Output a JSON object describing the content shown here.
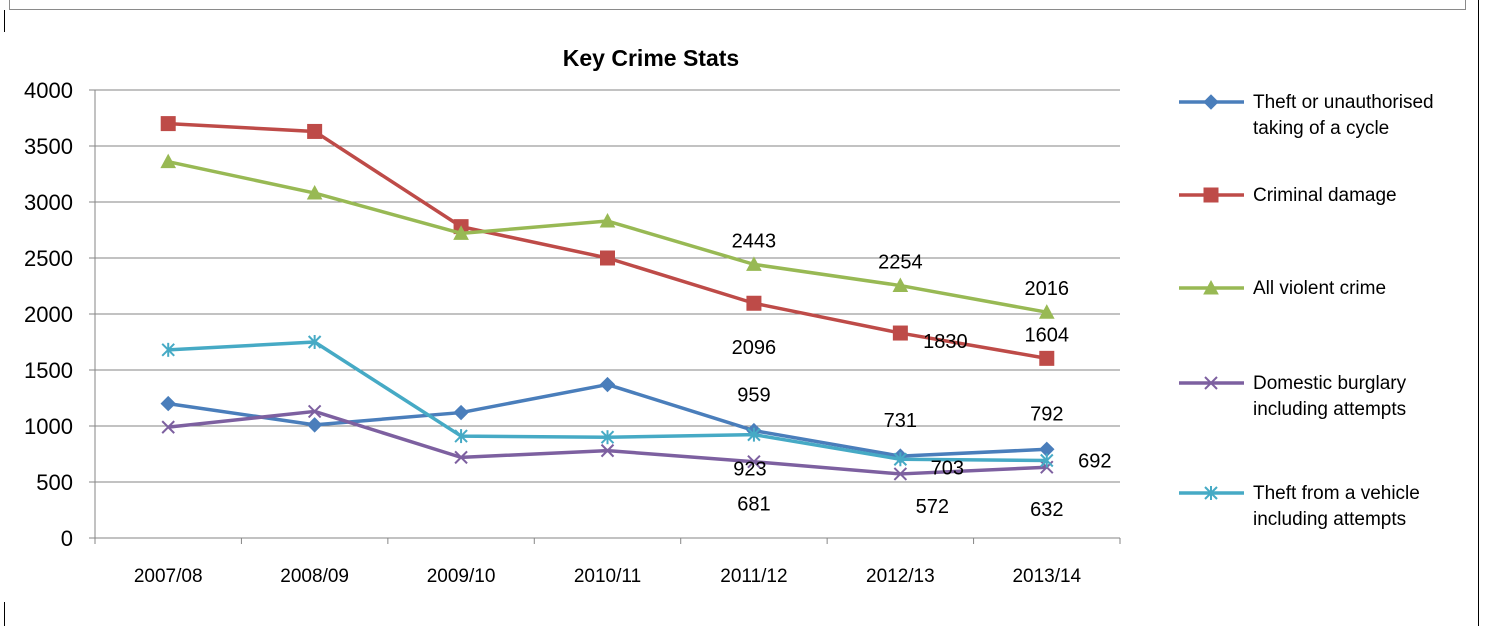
{
  "chart_data": {
    "type": "line",
    "title": "Key Crime Stats",
    "xlabel": "",
    "ylabel": "",
    "categories": [
      "2007/08",
      "2008/09",
      "2009/10",
      "2010/11",
      "2011/12",
      "2012/13",
      "2013/14"
    ],
    "ylim": [
      0,
      4000
    ],
    "yticks": [
      0,
      500,
      1000,
      1500,
      2000,
      2500,
      3000,
      3500,
      4000
    ],
    "grid": true,
    "legend_position": "right",
    "series": [
      {
        "name": "Theft or unauthorised taking of a cycle",
        "color": "#4a7ebb",
        "marker": "diamond",
        "values": [
          1200,
          1010,
          1120,
          1370,
          959,
          731,
          792
        ],
        "data_labels": [
          null,
          null,
          null,
          null,
          "959",
          "731",
          "792"
        ]
      },
      {
        "name": "Criminal damage",
        "color": "#be4b48",
        "marker": "square",
        "values": [
          3700,
          3630,
          2780,
          2500,
          2096,
          1830,
          1604
        ],
        "data_labels": [
          null,
          null,
          null,
          null,
          "2096",
          "1830",
          "1604"
        ]
      },
      {
        "name": "All violent crime",
        "color": "#98b954",
        "marker": "triangle",
        "values": [
          3360,
          3080,
          2720,
          2830,
          2443,
          2254,
          2016
        ],
        "data_labels": [
          null,
          null,
          null,
          null,
          "2443",
          "2254",
          "2016"
        ]
      },
      {
        "name": "Domestic burglary including attempts",
        "color": "#7d60a0",
        "marker": "x",
        "values": [
          990,
          1130,
          720,
          780,
          681,
          572,
          632
        ],
        "data_labels": [
          null,
          null,
          null,
          null,
          "681",
          "572",
          "632"
        ]
      },
      {
        "name": "Theft from a vehicle including attempts",
        "color": "#46aac5",
        "marker": "star",
        "values": [
          1680,
          1750,
          910,
          900,
          923,
          703,
          692
        ],
        "data_labels": [
          null,
          null,
          null,
          null,
          "923",
          "703",
          "692"
        ]
      }
    ]
  },
  "legend": {
    "items": [
      {
        "line1": "Theft or unauthorised",
        "line2": "taking of a cycle"
      },
      {
        "line1": "Criminal damage",
        "line2": ""
      },
      {
        "line1": "All violent crime",
        "line2": ""
      },
      {
        "line1": "Domestic burglary",
        "line2": "including attempts"
      },
      {
        "line1": "Theft from a vehicle",
        "line2": "including attempts"
      }
    ]
  }
}
